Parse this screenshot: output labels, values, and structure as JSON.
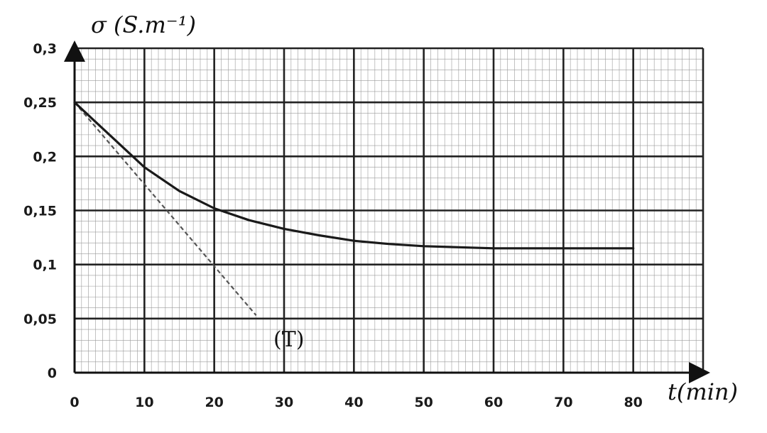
{
  "chart_data": {
    "type": "line",
    "title": "",
    "xlabel": "t(min)",
    "ylabel": "σ  (S.m⁻¹)",
    "xlim": [
      0,
      90
    ],
    "ylim": [
      0,
      0.3
    ],
    "x_ticks": [
      "0",
      "10",
      "20",
      "30",
      "40",
      "50",
      "60",
      "70",
      "80"
    ],
    "y_ticks": [
      "0",
      "0,05",
      "0,1",
      "0,15",
      "0,2",
      "0,25",
      "0,3"
    ],
    "grid": true,
    "series": [
      {
        "x": [
          0,
          5,
          10,
          15,
          20,
          25,
          30,
          35,
          40,
          45,
          50,
          55,
          60,
          65,
          70,
          75,
          80
        ],
        "values": [
          0.25,
          0.22,
          0.19,
          0.168,
          0.152,
          0.141,
          0.133,
          0.127,
          0.122,
          0.119,
          0.117,
          0.116,
          0.115,
          0.115,
          0.115,
          0.115,
          0.115
        ],
        "color": "#1a1a1a",
        "style": "solid"
      }
    ],
    "tangent": {
      "label": "(T)",
      "x": [
        0,
        26
      ],
      "values": [
        0.25,
        0.053
      ],
      "color": "#555555",
      "style": "dashed"
    }
  }
}
